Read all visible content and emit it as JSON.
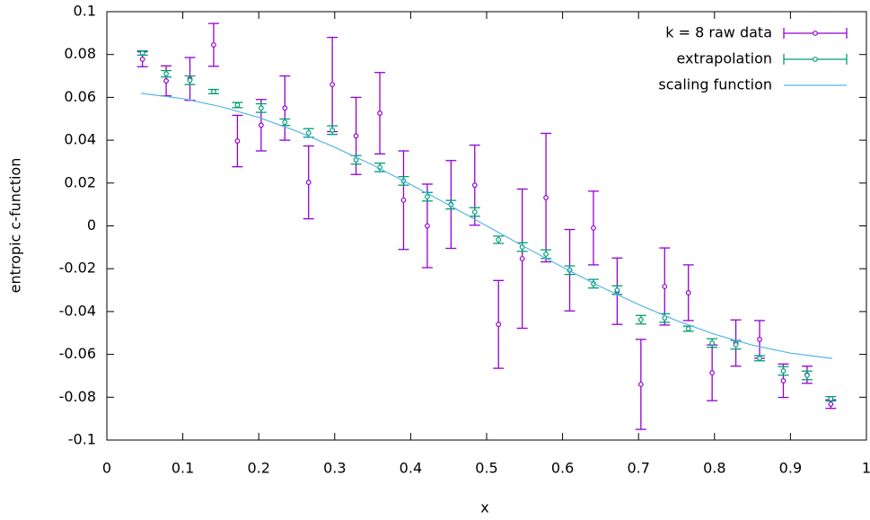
{
  "chart_data": {
    "type": "errorbar",
    "xlabel": "x",
    "ylabel": "entropic c-function",
    "xlim": [
      0,
      1
    ],
    "ylim": [
      -0.1,
      0.1
    ],
    "xticks": [
      0,
      0.1,
      0.2,
      0.3,
      0.4,
      0.5,
      0.6,
      0.7,
      0.8,
      0.9,
      1
    ],
    "yticks": [
      0.1,
      0.08,
      0.06,
      0.04,
      0.02,
      0,
      -0.02,
      -0.04,
      -0.06,
      -0.08,
      -0.1
    ],
    "legend": "top-right",
    "grid": false,
    "series": [
      {
        "name": "k = 8 raw data",
        "color": "#9400d3",
        "style": "errorbar",
        "x": [
          0.046875,
          0.078125,
          0.109375,
          0.140625,
          0.171875,
          0.203125,
          0.234375,
          0.265625,
          0.296875,
          0.328125,
          0.359375,
          0.390625,
          0.421875,
          0.453125,
          0.484375,
          0.515625,
          0.546875,
          0.578125,
          0.609375,
          0.640625,
          0.671875,
          0.703125,
          0.734375,
          0.765625,
          0.796875,
          0.828125,
          0.859375,
          0.890625,
          0.921875,
          0.953125
        ],
        "values": [
          0.0778,
          0.0677,
          0.0686,
          0.0845,
          0.0396,
          0.047,
          0.055,
          0.0203,
          0.066,
          0.042,
          0.0526,
          0.012,
          0,
          0.01,
          0.019,
          -0.046,
          -0.0153,
          0.0132,
          -0.0207,
          -0.001,
          -0.0305,
          -0.074,
          -0.0283,
          -0.0312,
          -0.0686,
          -0.0547,
          -0.053,
          -0.0723,
          -0.0695,
          -0.0832
        ],
        "errors": [
          0.0035,
          0.007,
          0.01,
          0.01,
          0.012,
          0.012,
          0.015,
          0.017,
          0.022,
          0.018,
          0.019,
          0.023,
          0.0195,
          0.0205,
          0.0187,
          0.0205,
          0.0325,
          0.03,
          0.019,
          0.0172,
          0.0155,
          0.021,
          0.018,
          0.013,
          0.013,
          0.0108,
          0.0088,
          0.0078,
          0.004,
          0.002
        ]
      },
      {
        "name": "extrapolation",
        "color": "#009e73",
        "style": "errorbar",
        "x": [
          0.046875,
          0.078125,
          0.109375,
          0.140625,
          0.171875,
          0.203125,
          0.234375,
          0.265625,
          0.296875,
          0.328125,
          0.359375,
          0.390625,
          0.421875,
          0.453125,
          0.484375,
          0.515625,
          0.546875,
          0.578125,
          0.609375,
          0.640625,
          0.671875,
          0.703125,
          0.734375,
          0.765625,
          0.796875,
          0.828125,
          0.859375,
          0.890625,
          0.921875,
          0.953125
        ],
        "values": [
          0.0807,
          0.071,
          0.068,
          0.0627,
          0.0564,
          0.055,
          0.0484,
          0.0434,
          0.0447,
          0.0308,
          0.0273,
          0.021,
          0.0136,
          0.0099,
          0.0065,
          -0.0065,
          -0.0099,
          -0.0132,
          -0.0207,
          -0.027,
          -0.03,
          -0.0438,
          -0.043,
          -0.048,
          -0.0547,
          -0.0555,
          -0.0618,
          -0.0677,
          -0.0698,
          -0.0807
        ],
        "errors": [
          0.001,
          0.0015,
          0.002,
          0.001,
          0.0012,
          0.002,
          0.0015,
          0.002,
          0.002,
          0.002,
          0.002,
          0.002,
          0.002,
          0.002,
          0.002,
          0.0017,
          0.002,
          0.002,
          0.002,
          0.002,
          0.002,
          0.002,
          0.002,
          0.0012,
          0.002,
          0.002,
          0.0012,
          0.002,
          0.002,
          0.001
        ]
      },
      {
        "name": "scaling function",
        "color": "#56b4e9",
        "style": "line",
        "x": [
          0.045,
          0.1,
          0.15,
          0.2,
          0.25,
          0.3,
          0.35,
          0.4,
          0.45,
          0.5,
          0.55,
          0.6,
          0.65,
          0.7,
          0.75,
          0.8,
          0.85,
          0.9,
          0.955
        ],
        "values": [
          0.0619,
          0.0594,
          0.0557,
          0.0506,
          0.0442,
          0.0367,
          0.0284,
          0.0193,
          0.0098,
          0,
          -0.0098,
          -0.0193,
          -0.0284,
          -0.0367,
          -0.0442,
          -0.0506,
          -0.0557,
          -0.0594,
          -0.0619
        ]
      }
    ]
  }
}
